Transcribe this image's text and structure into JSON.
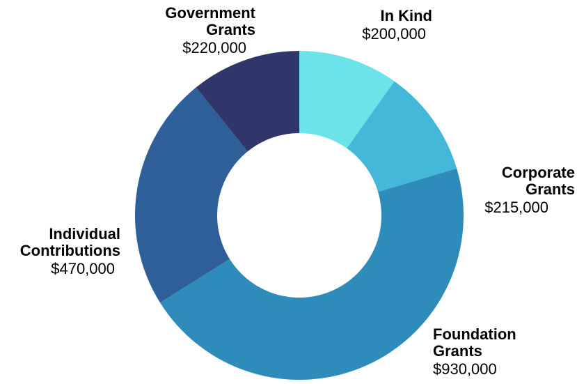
{
  "chart_data": {
    "type": "pie",
    "donut": true,
    "title": "",
    "legend": "none",
    "slices": [
      {
        "label": [
          "In Kind"
        ],
        "value_label": "$200,000",
        "value": 200000,
        "color": "#6be3e8"
      },
      {
        "label": [
          "Corporate",
          "Grants"
        ],
        "value_label": "$215,000",
        "value": 215000,
        "color": "#43b8d8"
      },
      {
        "label": [
          "Foundation",
          "Grants"
        ],
        "value_label": "$930,000",
        "value": 930000,
        "color": "#2e8cbb"
      },
      {
        "label": [
          "Individual",
          "Contributions"
        ],
        "value_label": "$470,000",
        "value": 470000,
        "color": "#2e5f98"
      },
      {
        "label": [
          "Government",
          "Grants"
        ],
        "value_label": "$220,000",
        "value": 220000,
        "color": "#30356a"
      }
    ]
  }
}
